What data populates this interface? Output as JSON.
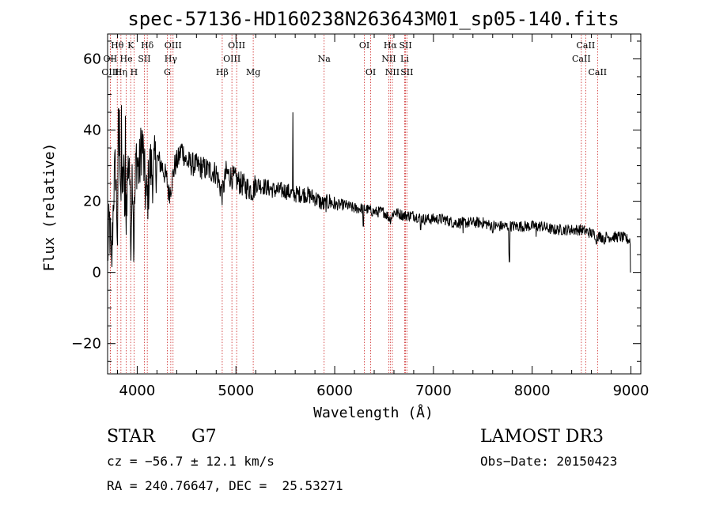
{
  "chart_data": {
    "type": "line",
    "title": "spec-57136-HD160238N263643M01_sp05-140.fits",
    "xlabel": "Wavelength (Å)",
    "ylabel": "Flux (relative)",
    "xlim": [
      3700,
      9100
    ],
    "ylim": [
      -28.5,
      67
    ],
    "xticks": [
      4000,
      5000,
      6000,
      7000,
      8000,
      9000
    ],
    "yticks": [
      -20,
      0,
      20,
      40,
      60
    ],
    "spectrum_anchors": [
      [
        3700,
        5
      ],
      [
        3720,
        14
      ],
      [
        3740,
        0
      ],
      [
        3760,
        22
      ],
      [
        3780,
        30
      ],
      [
        3800,
        10
      ],
      [
        3820,
        40
      ],
      [
        3840,
        18
      ],
      [
        3860,
        30
      ],
      [
        3880,
        12
      ],
      [
        3900,
        26
      ],
      [
        3920,
        34
      ],
      [
        3933,
        8
      ],
      [
        3950,
        30
      ],
      [
        3968,
        12
      ],
      [
        3990,
        33
      ],
      [
        4020,
        28
      ],
      [
        4050,
        38
      ],
      [
        4080,
        24
      ],
      [
        4101,
        20
      ],
      [
        4130,
        30
      ],
      [
        4160,
        28
      ],
      [
        4200,
        32
      ],
      [
        4250,
        30
      ],
      [
        4300,
        26
      ],
      [
        4320,
        22
      ],
      [
        4340,
        24
      ],
      [
        4380,
        30
      ],
      [
        4420,
        32
      ],
      [
        4450,
        35
      ],
      [
        4500,
        31
      ],
      [
        4600,
        30
      ],
      [
        4700,
        29
      ],
      [
        4800,
        28
      ],
      [
        4861,
        22
      ],
      [
        4900,
        28
      ],
      [
        5000,
        26
      ],
      [
        5100,
        24
      ],
      [
        5175,
        23
      ],
      [
        5200,
        25
      ],
      [
        5300,
        24
      ],
      [
        5400,
        23
      ],
      [
        5500,
        23
      ],
      [
        5577,
        22
      ],
      [
        5600,
        22
      ],
      [
        5700,
        22
      ],
      [
        5800,
        21
      ],
      [
        5890,
        19
      ],
      [
        5950,
        20
      ],
      [
        6000,
        19
      ],
      [
        6100,
        19
      ],
      [
        6200,
        18
      ],
      [
        6300,
        18
      ],
      [
        6400,
        17
      ],
      [
        6500,
        17
      ],
      [
        6563,
        15
      ],
      [
        6600,
        17
      ],
      [
        6700,
        16
      ],
      [
        6800,
        16
      ],
      [
        6900,
        15
      ],
      [
        7000,
        15
      ],
      [
        7100,
        15
      ],
      [
        7200,
        14
      ],
      [
        7300,
        14
      ],
      [
        7400,
        14
      ],
      [
        7500,
        14
      ],
      [
        7600,
        13
      ],
      [
        7700,
        13
      ],
      [
        7800,
        13
      ],
      [
        7900,
        13
      ],
      [
        8000,
        13
      ],
      [
        8100,
        13
      ],
      [
        8200,
        12
      ],
      [
        8300,
        12
      ],
      [
        8400,
        12
      ],
      [
        8500,
        12
      ],
      [
        8600,
        11
      ],
      [
        8700,
        10
      ],
      [
        8800,
        10
      ],
      [
        8900,
        10
      ],
      [
        8990,
        9
      ]
    ],
    "spectrum_spikes": [
      [
        5577,
        45
      ],
      [
        7770,
        3
      ],
      [
        7765,
        6
      ],
      [
        6290,
        13
      ],
      [
        6870,
        12
      ],
      [
        7300,
        11
      ],
      [
        7600,
        11
      ],
      [
        8040,
        10
      ],
      [
        8650,
        8
      ],
      [
        8730,
        8
      ],
      [
        3810,
        46
      ],
      [
        3840,
        47
      ],
      [
        3880,
        44
      ],
      [
        3965,
        3
      ]
    ],
    "spectral_lines": [
      {
        "label": "Hθ",
        "wavelength": 3798,
        "row": 1
      },
      {
        "label": "OII",
        "wavelength": 3727,
        "row": 2
      },
      {
        "label": "Hη",
        "wavelength": 3835,
        "row": 3
      },
      {
        "label": "OIII",
        "wavelength": 3727,
        "row": 3
      },
      {
        "label": "He",
        "wavelength": 3889,
        "row": 2
      },
      {
        "label": "K",
        "wavelength": 3934,
        "row": 1
      },
      {
        "label": "H",
        "wavelength": 3968,
        "row": 3
      },
      {
        "label": "Hδ",
        "wavelength": 4102,
        "row": 1
      },
      {
        "label": "SII",
        "wavelength": 4072,
        "row": 2
      },
      {
        "label": "OIII",
        "wavelength": 4363,
        "row": 1
      },
      {
        "label": "Hγ",
        "wavelength": 4340,
        "row": 2
      },
      {
        "label": "G",
        "wavelength": 4305,
        "row": 3
      },
      {
        "label": "Hβ",
        "wavelength": 4861,
        "row": 3
      },
      {
        "label": "OIII",
        "wavelength": 5007,
        "row": 1
      },
      {
        "label": "OIII",
        "wavelength": 4959,
        "row": 2
      },
      {
        "label": "Mg",
        "wavelength": 5175,
        "row": 3
      },
      {
        "label": "Na",
        "wavelength": 5893,
        "row": 2
      },
      {
        "label": "OI",
        "wavelength": 6300,
        "row": 1
      },
      {
        "label": "OI",
        "wavelength": 6364,
        "row": 3
      },
      {
        "label": "Hα",
        "wavelength": 6563,
        "row": 1
      },
      {
        "label": "SII",
        "wavelength": 6717,
        "row": 1
      },
      {
        "label": "NII",
        "wavelength": 6548,
        "row": 2
      },
      {
        "label": "Li",
        "wavelength": 6708,
        "row": 2
      },
      {
        "label": "NII",
        "wavelength": 6584,
        "row": 3
      },
      {
        "label": "SII",
        "wavelength": 6731,
        "row": 3
      },
      {
        "label": "CaII",
        "wavelength": 8542,
        "row": 1
      },
      {
        "label": "CaII",
        "wavelength": 8498,
        "row": 2
      },
      {
        "label": "CaII",
        "wavelength": 8662,
        "row": 3
      }
    ],
    "line_color": "#000000",
    "marker_color": "#cc2222"
  },
  "info": {
    "class": "STAR",
    "subclass": "G7",
    "survey": "LAMOST DR3",
    "cz": "cz = −56.7 ± 12.1 km/s",
    "obs_date": "Obs−Date: 20150423",
    "radec": "RA = 240.76647, DEC =  25.53271"
  }
}
